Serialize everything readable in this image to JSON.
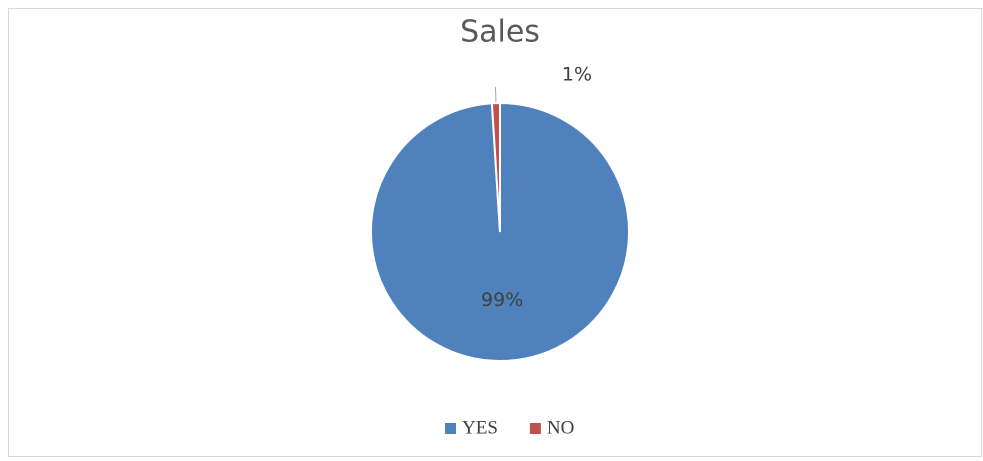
{
  "chart_data": {
    "type": "pie",
    "title": "Sales",
    "categories": [
      "YES",
      "NO"
    ],
    "values": [
      99,
      1
    ],
    "value_labels": [
      "99%",
      "1%"
    ],
    "colors": [
      "#4f81bd",
      "#c0504d"
    ],
    "legend": "bottom"
  }
}
